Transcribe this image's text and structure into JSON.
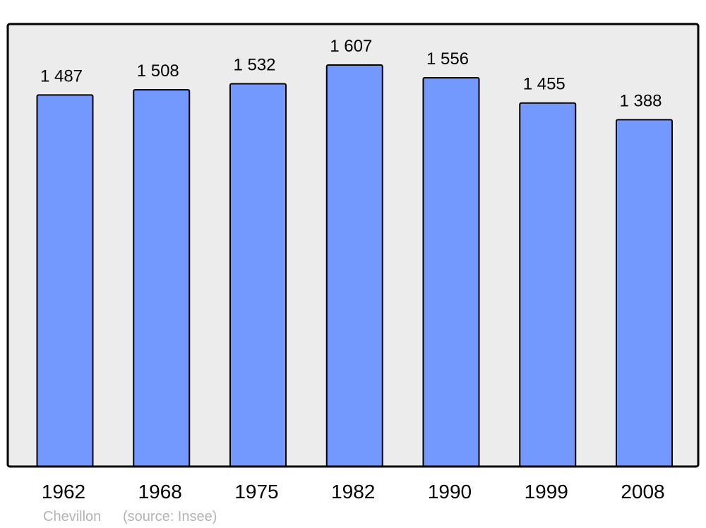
{
  "chart_data": {
    "type": "bar",
    "categories": [
      "1962",
      "1968",
      "1975",
      "1982",
      "1990",
      "1999",
      "2008"
    ],
    "values": [
      1487,
      1508,
      1532,
      1607,
      1556,
      1455,
      1388
    ],
    "value_labels": [
      "1 487",
      "1 508",
      "1 532",
      "1 607",
      "1 556",
      "1 455",
      "1 388"
    ],
    "title": "",
    "xlabel": "",
    "ylabel": "",
    "ylim": [
      0,
      1771
    ],
    "grid": false,
    "legend": "none",
    "colors": {
      "bar": "#7399ff",
      "plot_background": "#ececec",
      "outline": "#000000",
      "footer_text": "#b3b3b3"
    }
  },
  "footer": {
    "place": "Chevillon",
    "source": "(source: Insee)"
  }
}
